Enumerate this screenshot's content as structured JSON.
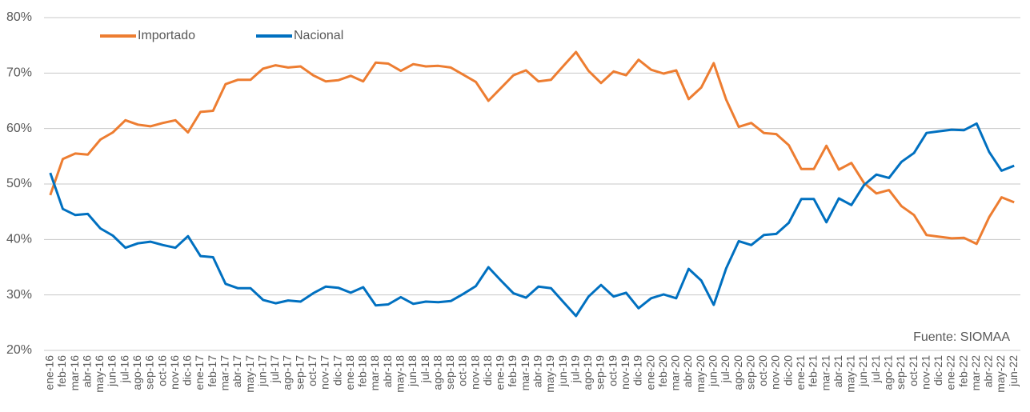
{
  "chart_data": {
    "type": "line",
    "categories": [
      "ene-16",
      "feb-16",
      "mar-16",
      "abr-16",
      "may-16",
      "jun-16",
      "jul-16",
      "ago-16",
      "sep-16",
      "oct-16",
      "nov-16",
      "dic-16",
      "ene-17",
      "feb-17",
      "mar-17",
      "abr-17",
      "may-17",
      "jun-17",
      "jul-17",
      "ago-17",
      "sep-17",
      "oct-17",
      "nov-17",
      "dic-17",
      "ene-18",
      "feb-18",
      "mar-18",
      "abr-18",
      "may-18",
      "jun-18",
      "jul-18",
      "ago-18",
      "sep-18",
      "oct-18",
      "nov-18",
      "dic-18",
      "ene-19",
      "feb-19",
      "mar-19",
      "abr-19",
      "may-19",
      "jun-19",
      "jul-19",
      "ago-19",
      "sep-19",
      "oct-19",
      "nov-19",
      "dic-19",
      "ene-20",
      "feb-20",
      "mar-20",
      "abr-20",
      "may-20",
      "jun-20",
      "jul-20",
      "ago-20",
      "sep-20",
      "oct-20",
      "nov-20",
      "dic-20",
      "ene-21",
      "feb-21",
      "mar-21",
      "abr-21",
      "may-21",
      "jun-21",
      "jul-21",
      "ago-21",
      "sep-21",
      "oct-21",
      "nov-21",
      "dic-21",
      "ene-22",
      "feb-22",
      "mar-22",
      "abr-22",
      "may-22",
      "jun-22"
    ],
    "series": [
      {
        "name": "Importado",
        "color": "#ED7D31",
        "values": [
          48,
          54.5,
          55.5,
          55.3,
          58,
          59.3,
          61.5,
          60.7,
          60.4,
          61,
          61.5,
          59.3,
          63,
          63.2,
          68,
          68.8,
          68.8,
          70.8,
          71.4,
          71,
          71.2,
          69.6,
          68.5,
          68.7,
          69.5,
          68.5,
          71.9,
          71.7,
          70.4,
          71.6,
          71.2,
          71.3,
          71,
          69.7,
          68.4,
          65,
          67.3,
          69.6,
          70.5,
          68.5,
          68.8,
          71.3,
          73.8,
          70.4,
          68.2,
          70.3,
          69.6,
          72.4,
          70.6,
          69.9,
          70.5,
          65.3,
          67.4,
          71.8,
          65.2,
          60.3,
          61,
          59.2,
          59,
          57,
          52.7,
          52.7,
          56.9,
          52.6,
          53.8,
          50.2,
          48.3,
          48.9,
          46,
          44.4,
          40.8,
          40.5,
          40.2,
          40.3,
          39.2,
          44,
          47.6,
          46.7
        ]
      },
      {
        "name": "Nacional",
        "color": "#0070C0",
        "values": [
          52,
          45.5,
          44.4,
          44.6,
          42,
          40.7,
          38.5,
          39.3,
          39.6,
          39,
          38.5,
          40.6,
          37,
          36.8,
          32,
          31.2,
          31.2,
          29.1,
          28.5,
          29,
          28.8,
          30.3,
          31.5,
          31.3,
          30.4,
          31.4,
          28.1,
          28.3,
          29.6,
          28.4,
          28.8,
          28.7,
          28.9,
          30.2,
          31.6,
          35,
          32.6,
          30.3,
          29.5,
          31.5,
          31.2,
          28.7,
          26.2,
          29.7,
          31.8,
          29.7,
          30.4,
          27.6,
          29.4,
          30.1,
          29.4,
          34.7,
          32.6,
          28.2,
          34.8,
          39.7,
          39,
          40.8,
          41,
          43,
          47.3,
          47.3,
          43.1,
          47.4,
          46.2,
          49.8,
          51.7,
          51.1,
          54,
          55.6,
          59.2,
          59.5,
          59.8,
          59.7,
          60.9,
          55.8,
          52.4,
          53.3
        ]
      }
    ],
    "ylim": [
      20,
      80
    ],
    "yticks": [
      {
        "value": 20,
        "label": "20%"
      },
      {
        "value": 30,
        "label": "30%"
      },
      {
        "value": 40,
        "label": "40%"
      },
      {
        "value": 50,
        "label": "50%"
      },
      {
        "value": 60,
        "label": "60%"
      },
      {
        "value": 70,
        "label": "70%"
      },
      {
        "value": 80,
        "label": "80%"
      }
    ],
    "grid": true,
    "legend": "top-left",
    "annotation": "Fuente: SIOMAA"
  }
}
